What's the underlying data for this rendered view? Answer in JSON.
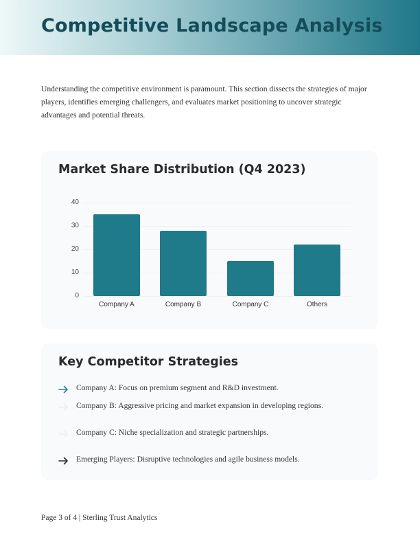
{
  "header": {
    "title": "Competitive Landscape Analysis"
  },
  "intro": {
    "text": "Understanding the competitive environment is paramount. This section dissects the strategies of major players, identifies emerging challengers, and evaluates market positioning to uncover strategic advantages and potential threats."
  },
  "chart_card": {
    "title": "Market Share Distribution (Q4 2023)",
    "y_ticks": [
      "40",
      "30",
      "20",
      "10",
      "0"
    ],
    "categories": [
      "Company A",
      "Company B",
      "Company C",
      "Others"
    ]
  },
  "chart_data": {
    "type": "bar",
    "title": "Market Share Distribution (Q4 2023)",
    "categories": [
      "Company A",
      "Company B",
      "Company C",
      "Others"
    ],
    "values": [
      35,
      28,
      15,
      22
    ],
    "xlabel": "",
    "ylabel": "",
    "ylim": [
      0,
      40
    ],
    "yticks": [
      0,
      10,
      20,
      30,
      40
    ],
    "grid": true,
    "legend": false,
    "bar_color": "#1f7a8a"
  },
  "strategies": {
    "title": "Key Competitor Strategies",
    "items": [
      {
        "text": "Company A: Focus on premium segment and R&D investment.",
        "icon": "arrow-right-icon",
        "icon_color": "#2e7f8e"
      },
      {
        "text": "Company B: Aggressive pricing and market expansion in developing regions.",
        "icon": "arrow-right-icon",
        "icon_color": "#e3f1f3"
      },
      {
        "text": "Company C: Niche specialization and strategic partnerships.",
        "icon": "arrow-right-icon",
        "icon_color": "#eef2f4"
      },
      {
        "text": "Emerging Players: Disruptive technologies and agile business models.",
        "icon": "arrow-right-icon",
        "icon_color": "#2b2b2b"
      }
    ]
  },
  "footer": {
    "text": "Page 3 of 4 | Sterling Trust Analytics"
  },
  "colors": {
    "accent": "#1f7a8a",
    "title": "#144c5a",
    "card_bg": "#f8fafc"
  }
}
